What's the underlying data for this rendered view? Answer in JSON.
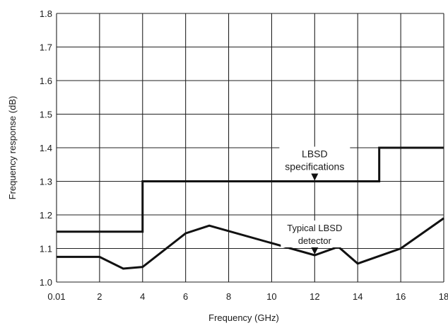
{
  "chart_data": {
    "type": "line",
    "xlabel": "Frequency (GHz)",
    "ylabel": "Frequency response (dB)",
    "x_ticks": [
      "0.01",
      "2",
      "4",
      "6",
      "8",
      "10",
      "12",
      "14",
      "16",
      "18"
    ],
    "y_ticks": [
      "1.0",
      "1.1",
      "1.2",
      "1.3",
      "1.4",
      "1.5",
      "1.6",
      "1.7",
      "1.8"
    ],
    "xlim": [
      0,
      18
    ],
    "ylim": [
      1.0,
      1.8
    ],
    "grid": true,
    "series": [
      {
        "name": "LBSD specifications",
        "style": "step",
        "color": "#111111",
        "points": [
          [
            0.01,
            1.15
          ],
          [
            4,
            1.15
          ],
          [
            4,
            1.3
          ],
          [
            15,
            1.3
          ],
          [
            15,
            1.4
          ],
          [
            18,
            1.4
          ]
        ]
      },
      {
        "name": "Typical LBSD detector",
        "style": "line",
        "color": "#111111",
        "points": [
          [
            0.01,
            1.075
          ],
          [
            2,
            1.075
          ],
          [
            3.1,
            1.04
          ],
          [
            4,
            1.045
          ],
          [
            6,
            1.145
          ],
          [
            7.1,
            1.168
          ],
          [
            12,
            1.08
          ],
          [
            13.1,
            1.105
          ],
          [
            14,
            1.055
          ],
          [
            16,
            1.1
          ],
          [
            18,
            1.19
          ]
        ]
      }
    ],
    "annotations": [
      {
        "lines": [
          "LBSD",
          "specifications"
        ],
        "x": 12,
        "y": 1.3
      },
      {
        "lines": [
          "Typical LBSD",
          "detector"
        ],
        "x": 12,
        "y": 1.08
      }
    ]
  }
}
